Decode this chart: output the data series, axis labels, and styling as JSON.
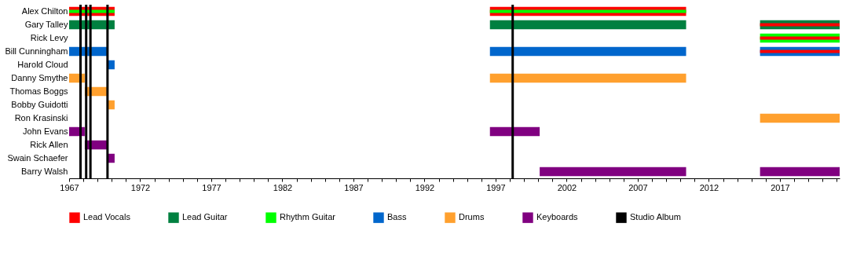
{
  "chart_data": {
    "type": "bar",
    "orientation": "horizontal",
    "categories": [
      "Alex Chilton",
      "Gary Talley",
      "Rick Levy",
      "Bill Cunningham",
      "Harold Cloud",
      "Danny Smythe",
      "Thomas Boggs",
      "Bobby Guidotti",
      "Ron Krasinski",
      "John Evans",
      "Rick Allen",
      "Swain Schaefer",
      "Barry Walsh"
    ],
    "series": [
      {
        "name": "Lead Vocals",
        "color": "#ff0000",
        "base": [
          1967,
          null,
          null,
          null,
          null,
          null,
          null,
          null,
          null,
          null,
          null,
          null,
          null
        ],
        "values": [
          3.2,
          null,
          null,
          null,
          null,
          null,
          null,
          null,
          null,
          null,
          null,
          null,
          null
        ]
      },
      {
        "color": "#ff0000",
        "base": [
          1996.6,
          null,
          null,
          null,
          null,
          null,
          null,
          null,
          null,
          null,
          null,
          null,
          null
        ],
        "values": [
          13.8,
          null,
          null,
          null,
          null,
          null,
          null,
          null,
          null,
          null,
          null,
          null,
          null
        ]
      },
      {
        "name": "Lead Guitar",
        "color": "#008040",
        "base": [
          null,
          1967,
          null,
          null,
          null,
          null,
          null,
          null,
          null,
          null,
          null,
          null,
          null
        ],
        "values": [
          null,
          3.2,
          null,
          null,
          null,
          null,
          null,
          null,
          null,
          null,
          null,
          null,
          null
        ]
      },
      {
        "color": "#008040",
        "base": [
          null,
          1996.6,
          null,
          null,
          null,
          null,
          null,
          null,
          null,
          null,
          null,
          null,
          null
        ],
        "values": [
          null,
          13.8,
          null,
          null,
          null,
          null,
          null,
          null,
          null,
          null,
          null,
          null,
          null
        ]
      },
      {
        "color": "#008040",
        "base": [
          null,
          2015.6,
          null,
          null,
          null,
          null,
          null,
          null,
          null,
          null,
          null,
          null,
          null
        ],
        "values": [
          null,
          5.6,
          null,
          null,
          null,
          null,
          null,
          null,
          null,
          null,
          null,
          null,
          null
        ]
      },
      {
        "name": "Rhythm Guitar",
        "color": "#00ff00",
        "base": [
          null,
          null,
          2015.6,
          null,
          null,
          null,
          null,
          null,
          null,
          null,
          null,
          null,
          null
        ],
        "values": [
          null,
          null,
          5.6,
          null,
          null,
          null,
          null,
          null,
          null,
          null,
          null,
          null,
          null
        ]
      },
      {
        "name": "Bass",
        "color": "#0066cc",
        "base": [
          null,
          null,
          null,
          1967,
          1969.7,
          null,
          null,
          null,
          null,
          null,
          null,
          null,
          null
        ],
        "values": [
          null,
          null,
          null,
          2.7,
          0.5,
          null,
          null,
          null,
          null,
          null,
          null,
          null,
          null
        ]
      },
      {
        "color": "#0066cc",
        "base": [
          null,
          null,
          null,
          1996.6,
          null,
          null,
          null,
          null,
          null,
          null,
          null,
          null,
          null
        ],
        "values": [
          null,
          null,
          null,
          13.8,
          null,
          null,
          null,
          null,
          null,
          null,
          null,
          null,
          null
        ]
      },
      {
        "color": "#0066cc",
        "base": [
          null,
          null,
          null,
          2015.6,
          null,
          null,
          null,
          null,
          null,
          null,
          null,
          null,
          null
        ],
        "values": [
          null,
          null,
          null,
          5.6,
          null,
          null,
          null,
          null,
          null,
          null,
          null,
          null,
          null
        ]
      },
      {
        "name": "Drums",
        "color": "#ffa02e",
        "base": [
          null,
          null,
          null,
          null,
          null,
          1967,
          1968.1,
          1969.7,
          2015.6,
          null,
          null,
          null,
          null
        ],
        "values": [
          null,
          null,
          null,
          null,
          null,
          1.1,
          1.6,
          0.5,
          5.6,
          null,
          null,
          null,
          null
        ]
      },
      {
        "color": "#ffa02e",
        "base": [
          null,
          null,
          null,
          null,
          null,
          1996.6,
          null,
          null,
          null,
          null,
          null,
          null,
          null
        ],
        "values": [
          null,
          null,
          null,
          null,
          null,
          13.8,
          null,
          null,
          null,
          null,
          null,
          null,
          null
        ]
      },
      {
        "name": "Keyboards",
        "color": "#800080",
        "base": [
          null,
          null,
          null,
          null,
          null,
          null,
          null,
          null,
          null,
          1967,
          1968.1,
          1969.7,
          2000.1
        ],
        "values": [
          null,
          null,
          null,
          null,
          null,
          null,
          null,
          null,
          null,
          1.1,
          1.6,
          0.5,
          10.3
        ]
      },
      {
        "color": "#800080",
        "base": [
          null,
          null,
          null,
          null,
          null,
          null,
          null,
          null,
          null,
          1996.6,
          null,
          null,
          2015.6
        ],
        "values": [
          null,
          null,
          null,
          null,
          null,
          null,
          null,
          null,
          null,
          3.5,
          null,
          null,
          5.6
        ]
      },
      {
        "color": "#00ff00",
        "base": [
          1967,
          null,
          null,
          null,
          null,
          null,
          null,
          null,
          null,
          null,
          null,
          null,
          null
        ],
        "values": [
          3.2,
          null,
          null,
          null,
          null,
          null,
          null,
          null,
          null,
          null,
          null,
          null,
          null
        ]
      },
      {
        "color": "#00ff00",
        "base": [
          1996.6,
          null,
          null,
          null,
          null,
          null,
          null,
          null,
          null,
          null,
          null,
          null,
          null
        ],
        "values": [
          13.8,
          null,
          null,
          null,
          null,
          null,
          null,
          null,
          null,
          null,
          null,
          null,
          null
        ]
      },
      {
        "color": "#ff0000",
        "base": [
          null,
          2015.6,
          2015.6,
          2015.6,
          null,
          null,
          null,
          null,
          null,
          null,
          null,
          null,
          null
        ],
        "values": [
          null,
          5.6,
          5.6,
          5.6,
          null,
          null,
          null,
          null,
          null,
          null,
          null,
          null,
          null
        ]
      }
    ],
    "ref_lines": [
      {
        "axis": "x",
        "value": 1967.8,
        "label": "Studio Album",
        "color": "#000000"
      },
      {
        "axis": "x",
        "value": 1968.2,
        "color": "#000000"
      },
      {
        "axis": "x",
        "value": 1968.5,
        "color": "#000000"
      },
      {
        "axis": "x",
        "value": 1969.7,
        "color": "#000000"
      },
      {
        "axis": "x",
        "value": 1998.2,
        "color": "#000000"
      }
    ],
    "xlim": [
      1967,
      2021.2
    ],
    "xticks": [
      1967,
      {
        "value": 1968,
        "label": null
      },
      {
        "value": 1969,
        "label": null
      },
      {
        "value": 1970,
        "label": null
      },
      {
        "value": 1971,
        "label": null
      },
      1972,
      {
        "value": 1973,
        "label": null
      },
      {
        "value": 1974,
        "label": null
      },
      {
        "value": 1975,
        "label": null
      },
      {
        "value": 1976,
        "label": null
      },
      1977,
      {
        "value": 1978,
        "label": null
      },
      {
        "value": 1979,
        "label": null
      },
      {
        "value": 1980,
        "label": null
      },
      {
        "value": 1981,
        "label": null
      },
      1982,
      {
        "value": 1983,
        "label": null
      },
      {
        "value": 1984,
        "label": null
      },
      {
        "value": 1985,
        "label": null
      },
      {
        "value": 1986,
        "label": null
      },
      1987,
      {
        "value": 1988,
        "label": null
      },
      {
        "value": 1989,
        "label": null
      },
      {
        "value": 1990,
        "label": null
      },
      {
        "value": 1991,
        "label": null
      },
      1992,
      {
        "value": 1993,
        "label": null
      },
      {
        "value": 1994,
        "label": null
      },
      {
        "value": 1995,
        "label": null
      },
      {
        "value": 1996,
        "label": null
      },
      1997,
      {
        "value": 1998,
        "label": null
      },
      {
        "value": 1999,
        "label": null
      },
      {
        "value": 2000,
        "label": null
      },
      {
        "value": 2001,
        "label": null
      },
      2002,
      {
        "value": 2003,
        "label": null
      },
      {
        "value": 2004,
        "label": null
      },
      {
        "value": 2005,
        "label": null
      },
      {
        "value": 2006,
        "label": null
      },
      2007,
      {
        "value": 2008,
        "label": null
      },
      {
        "value": 2009,
        "label": null
      },
      {
        "value": 2010,
        "label": null
      },
      {
        "value": 2011,
        "label": null
      },
      2012,
      {
        "value": 2013,
        "label": null
      },
      {
        "value": 2014,
        "label": null
      },
      {
        "value": 2015,
        "label": null
      },
      {
        "value": 2016,
        "label": null
      },
      2017,
      {
        "value": 2018,
        "label": null
      },
      {
        "value": 2019,
        "label": null
      },
      {
        "value": 2020,
        "label": null
      },
      {
        "value": 2021,
        "label": null
      }
    ],
    "grid": false,
    "legend": "bottom"
  }
}
